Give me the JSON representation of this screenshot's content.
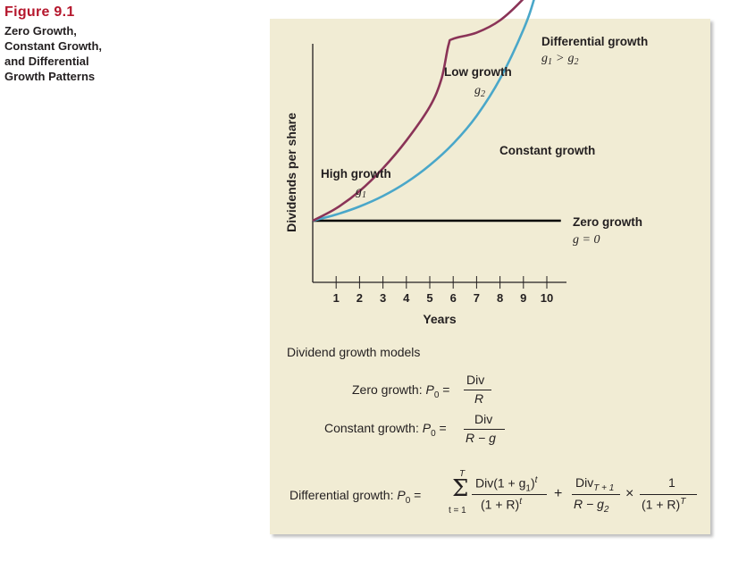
{
  "figure": {
    "label": "Figure 9.1",
    "title": "Zero Growth,\nConstant Growth,\nand Differential\nGrowth Patterns"
  },
  "chart_data": {
    "type": "line",
    "xlabel": "Years",
    "ylabel": "Dividends per share",
    "x_ticks": [
      1,
      2,
      3,
      4,
      5,
      6,
      7,
      8,
      9,
      10
    ],
    "xlim": [
      0,
      10.5
    ],
    "ylim": [
      0,
      6
    ],
    "grid": false,
    "series": [
      {
        "name": "Zero growth",
        "color": "#000000",
        "x": [
          0,
          10.6
        ],
        "y": [
          1.0,
          1.0
        ]
      },
      {
        "name": "Constant growth",
        "color": "#4aa7c9",
        "x": [
          0,
          1,
          2,
          3,
          4,
          5,
          6,
          7,
          8,
          9,
          9.5,
          10
        ],
        "y": [
          1.0,
          1.1,
          1.23,
          1.4,
          1.62,
          1.9,
          2.25,
          2.7,
          3.3,
          4.1,
          4.65,
          5.4
        ]
      },
      {
        "name": "Differential growth",
        "color": "#8a3357",
        "x": [
          0,
          1,
          2,
          3,
          4,
          5,
          5.5,
          5.8,
          6,
          7,
          8,
          9,
          9.5
        ],
        "y": [
          1.0,
          1.2,
          1.48,
          1.85,
          2.3,
          2.85,
          3.3,
          3.85,
          3.95,
          4.05,
          4.25,
          4.6,
          4.85
        ]
      }
    ],
    "annotations": {
      "high_growth": {
        "label": "High growth",
        "sub": "g",
        "idx": "1"
      },
      "low_growth": {
        "label": "Low growth",
        "sub": "g",
        "idx": "2"
      },
      "differential": {
        "label": "Differential growth",
        "rel_lhs_g": "g",
        "rel_lhs_i": "1",
        "rel_op": ">",
        "rel_rhs_g": "g",
        "rel_rhs_i": "2"
      },
      "constant": {
        "label": "Constant growth"
      },
      "zero": {
        "label": "Zero growth",
        "eq": "g = 0"
      }
    }
  },
  "models": {
    "heading": "Dividend growth models",
    "zero_label": "Zero growth: ",
    "const_label": "Constant growth: ",
    "diff_label": "Differential growth: ",
    "P": "P",
    "zero_sub": "0",
    "eq": "=",
    "div": "Div",
    "R": "R",
    "R_minus_g": "R − g",
    "sum_top": "T",
    "sum_bottom": "t = 1",
    "sigma": "Σ",
    "term1_num": "Div(1 + g",
    "term1_num_sub": "1",
    "term1_num_close": ")",
    "term1_num_sup": "t",
    "term1_den": "(1 + R)",
    "term1_den_sup": "t",
    "plus": "+",
    "term2_num": "Div",
    "term2_num_sub": "T + 1",
    "term2_den": "R − g",
    "term2_den_sub": "2",
    "times": "×",
    "term3_num": "1",
    "term3_den": "(1 + R)",
    "term3_den_sup": "T"
  }
}
